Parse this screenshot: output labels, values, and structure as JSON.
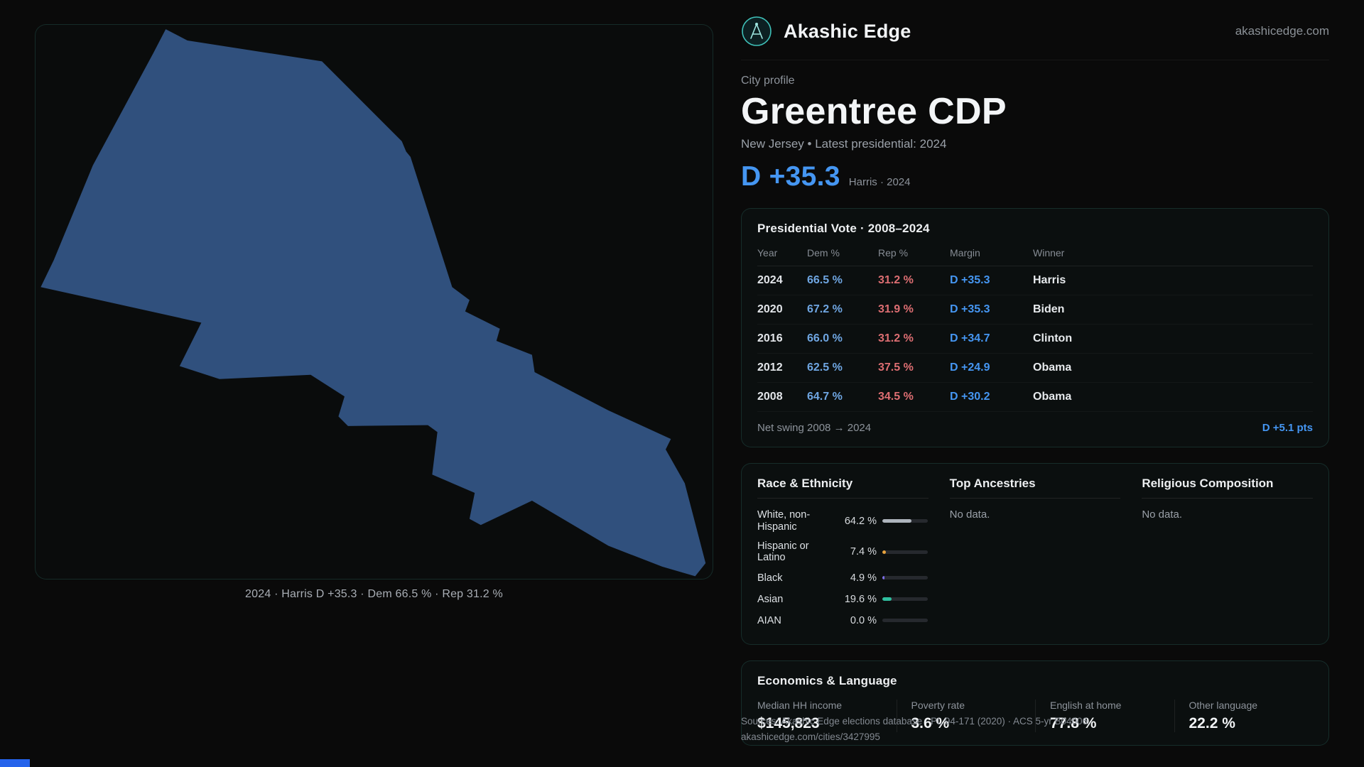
{
  "theme": {
    "dem": "#6fa6e2",
    "dem_bright": "#4596f2",
    "rep": "#dd6e72",
    "teal_border": "rgba(94,234,212,0.14)",
    "shape_fill": "#30507d",
    "bar_track": "#26292e",
    "chip": "#2563eb"
  },
  "header": {
    "brand": "Akashic Edge",
    "domain": "akashicedge.com"
  },
  "profile": {
    "kicker": "City profile",
    "title": "Greentree CDP",
    "subtitle": "New Jersey • Latest presidential: 2024",
    "headline_margin": "D +35.3",
    "headline_context": "Harris · 2024"
  },
  "map": {
    "caption": "2024 · Harris D +35.3 · Dem 66.5 % · Rep 31.2 %"
  },
  "vote_card": {
    "title": "Presidential Vote · 2008–2024",
    "columns": [
      "Year",
      "Dem %",
      "Rep %",
      "Margin",
      "Winner"
    ],
    "rows": [
      {
        "year": "2024",
        "dem": "66.5 %",
        "rep": "31.2 %",
        "margin": "D +35.3",
        "winner": "Harris"
      },
      {
        "year": "2020",
        "dem": "67.2 %",
        "rep": "31.9 %",
        "margin": "D +35.3",
        "winner": "Biden"
      },
      {
        "year": "2016",
        "dem": "66.0 %",
        "rep": "31.2 %",
        "margin": "D +34.7",
        "winner": "Clinton"
      },
      {
        "year": "2012",
        "dem": "62.5 %",
        "rep": "37.5 %",
        "margin": "D +24.9",
        "winner": "Obama"
      },
      {
        "year": "2008",
        "dem": "64.7 %",
        "rep": "34.5 %",
        "margin": "D +30.2",
        "winner": "Obama"
      }
    ],
    "net_swing_label": "Net swing 2008 → 2024",
    "net_swing_value": "D +5.1 pts"
  },
  "demographics": {
    "race_title": "Race & Ethnicity",
    "race_rows": [
      {
        "label": "White, non-Hispanic",
        "value": "64.2 %",
        "pct": 64.2,
        "color": "#aeb4bc"
      },
      {
        "label": "Hispanic or Latino",
        "value": "7.4 %",
        "pct": 7.4,
        "color": "#e8a33d"
      },
      {
        "label": "Black",
        "value": "4.9 %",
        "pct": 4.9,
        "color": "#7d6ee8"
      },
      {
        "label": "Asian",
        "value": "19.6 %",
        "pct": 19.6,
        "color": "#2fbf9f"
      },
      {
        "label": "AIAN",
        "value": "0.0 %",
        "pct": 0.0,
        "color": "#aeb4bc"
      }
    ],
    "ancestries_title": "Top Ancestries",
    "ancestries_empty": "No data.",
    "religion_title": "Religious Composition",
    "religion_empty": "No data."
  },
  "economics": {
    "title": "Economics & Language",
    "stats": [
      {
        "label": "Median HH income",
        "value": "$145,823"
      },
      {
        "label": "Poverty rate",
        "value": "3.6 %"
      },
      {
        "label": "English at home",
        "value": "77.8 %"
      },
      {
        "label": "Other language",
        "value": "22.2 %"
      }
    ]
  },
  "footer": {
    "sources": "Sources: Akashic Edge elections database · PL 94-171 (2020) · ACS 5-yr B04006",
    "permalink": "akashicedge.com/cities/3427995"
  }
}
